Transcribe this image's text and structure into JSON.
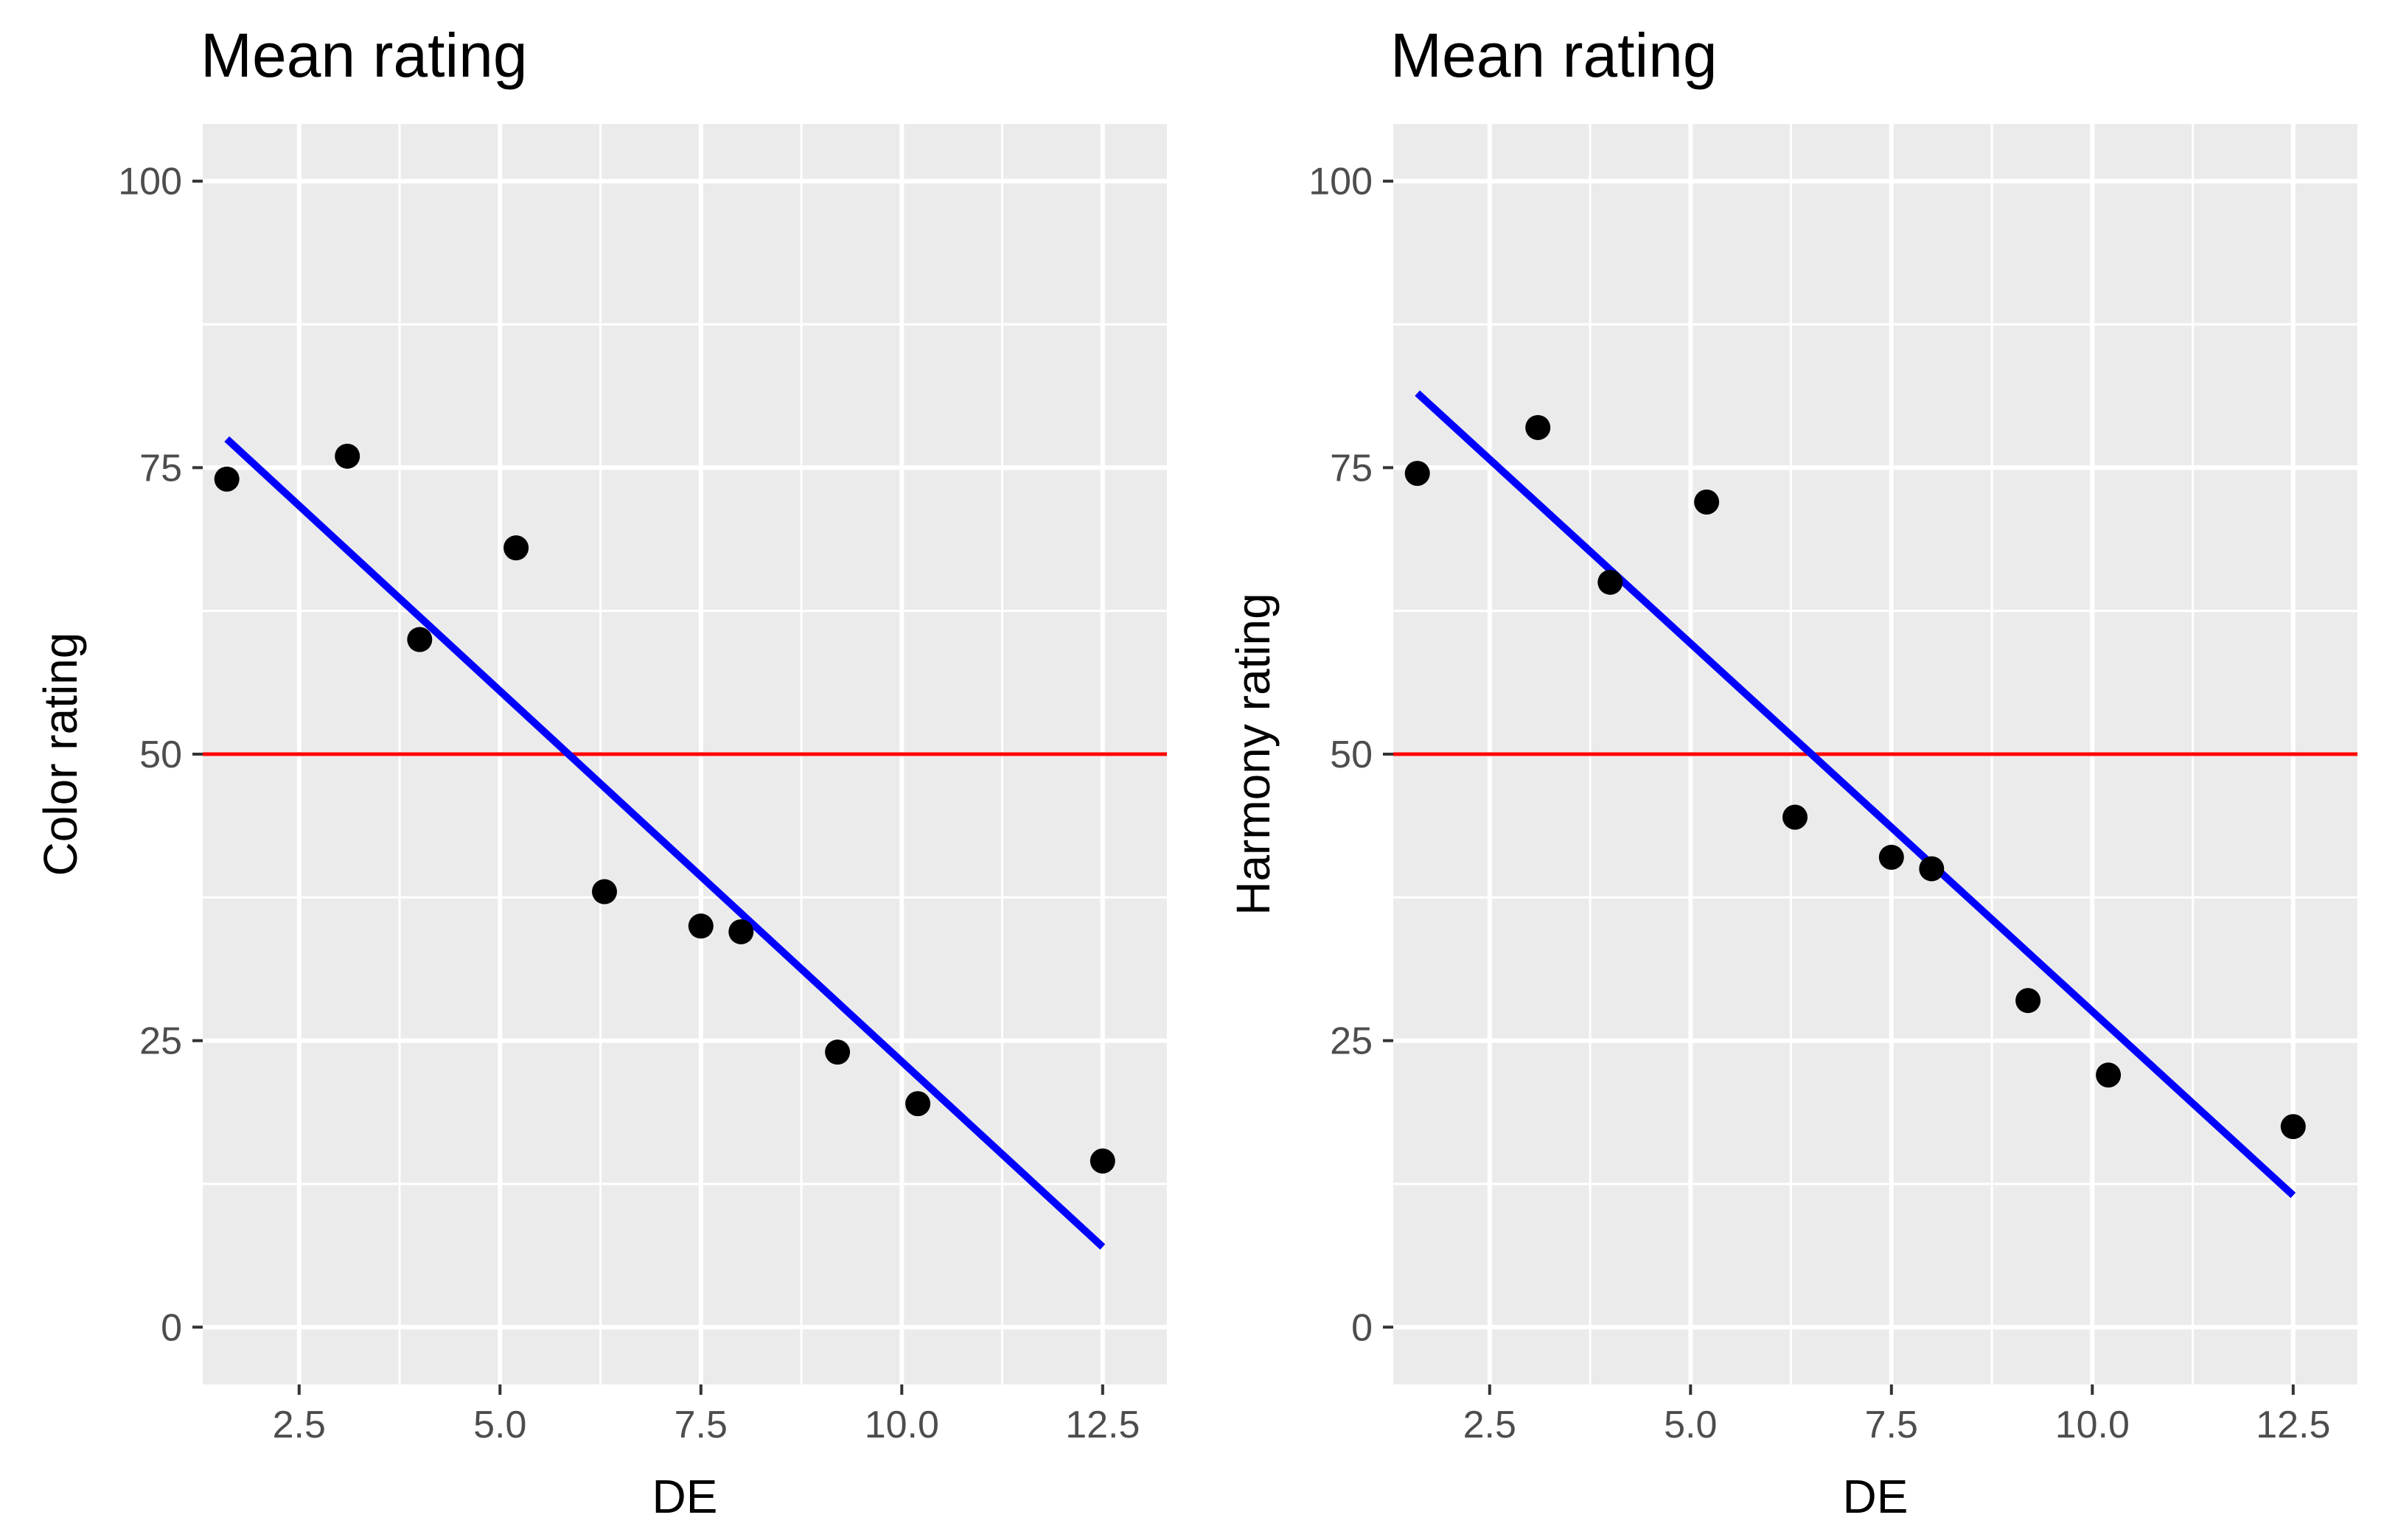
{
  "chart_data": [
    {
      "type": "scatter",
      "title": "Mean rating",
      "xlabel": "DE",
      "ylabel": "Color rating",
      "xlim": [
        1.3,
        13.3
      ],
      "ylim": [
        -5,
        105
      ],
      "x_ticks": [
        2.5,
        5.0,
        7.5,
        10.0,
        12.5
      ],
      "x_tick_labels": [
        "2.5",
        "5.0",
        "7.5",
        "10.0",
        "12.5"
      ],
      "y_ticks": [
        0,
        25,
        50,
        75,
        100
      ],
      "y_tick_labels": [
        "0",
        "25",
        "50",
        "75",
        "100"
      ],
      "points": [
        {
          "x": 1.6,
          "y": 74
        },
        {
          "x": 3.1,
          "y": 76
        },
        {
          "x": 4.0,
          "y": 60
        },
        {
          "x": 5.2,
          "y": 68
        },
        {
          "x": 6.3,
          "y": 38
        },
        {
          "x": 7.5,
          "y": 35
        },
        {
          "x": 8.0,
          "y": 34.5
        },
        {
          "x": 9.2,
          "y": 24
        },
        {
          "x": 10.2,
          "y": 19.5
        },
        {
          "x": 12.5,
          "y": 14.5
        }
      ],
      "fit_line": {
        "x1": 1.6,
        "y1": 77.5,
        "x2": 12.5,
        "y2": 7,
        "color": "#0000ff"
      },
      "reference_line": {
        "y": 50,
        "color": "#ff0000"
      },
      "grid": true
    },
    {
      "type": "scatter",
      "title": "Mean rating",
      "xlabel": "DE",
      "ylabel": "Harmony rating",
      "xlim": [
        1.3,
        13.3
      ],
      "ylim": [
        -5,
        105
      ],
      "x_ticks": [
        2.5,
        5.0,
        7.5,
        10.0,
        12.5
      ],
      "x_tick_labels": [
        "2.5",
        "5.0",
        "7.5",
        "10.0",
        "12.5"
      ],
      "y_ticks": [
        0,
        25,
        50,
        75,
        100
      ],
      "y_tick_labels": [
        "0",
        "25",
        "50",
        "75",
        "100"
      ],
      "points": [
        {
          "x": 1.6,
          "y": 74.5
        },
        {
          "x": 3.1,
          "y": 78.5
        },
        {
          "x": 4.0,
          "y": 65
        },
        {
          "x": 5.2,
          "y": 72
        },
        {
          "x": 6.3,
          "y": 44.5
        },
        {
          "x": 7.5,
          "y": 41
        },
        {
          "x": 8.0,
          "y": 40
        },
        {
          "x": 9.2,
          "y": 28.5
        },
        {
          "x": 10.2,
          "y": 22
        },
        {
          "x": 12.5,
          "y": 17.5
        }
      ],
      "fit_line": {
        "x1": 1.6,
        "y1": 81.5,
        "x2": 12.5,
        "y2": 11.5,
        "color": "#0000ff"
      },
      "reference_line": {
        "y": 50,
        "color": "#ff0000"
      },
      "grid": true
    }
  ]
}
